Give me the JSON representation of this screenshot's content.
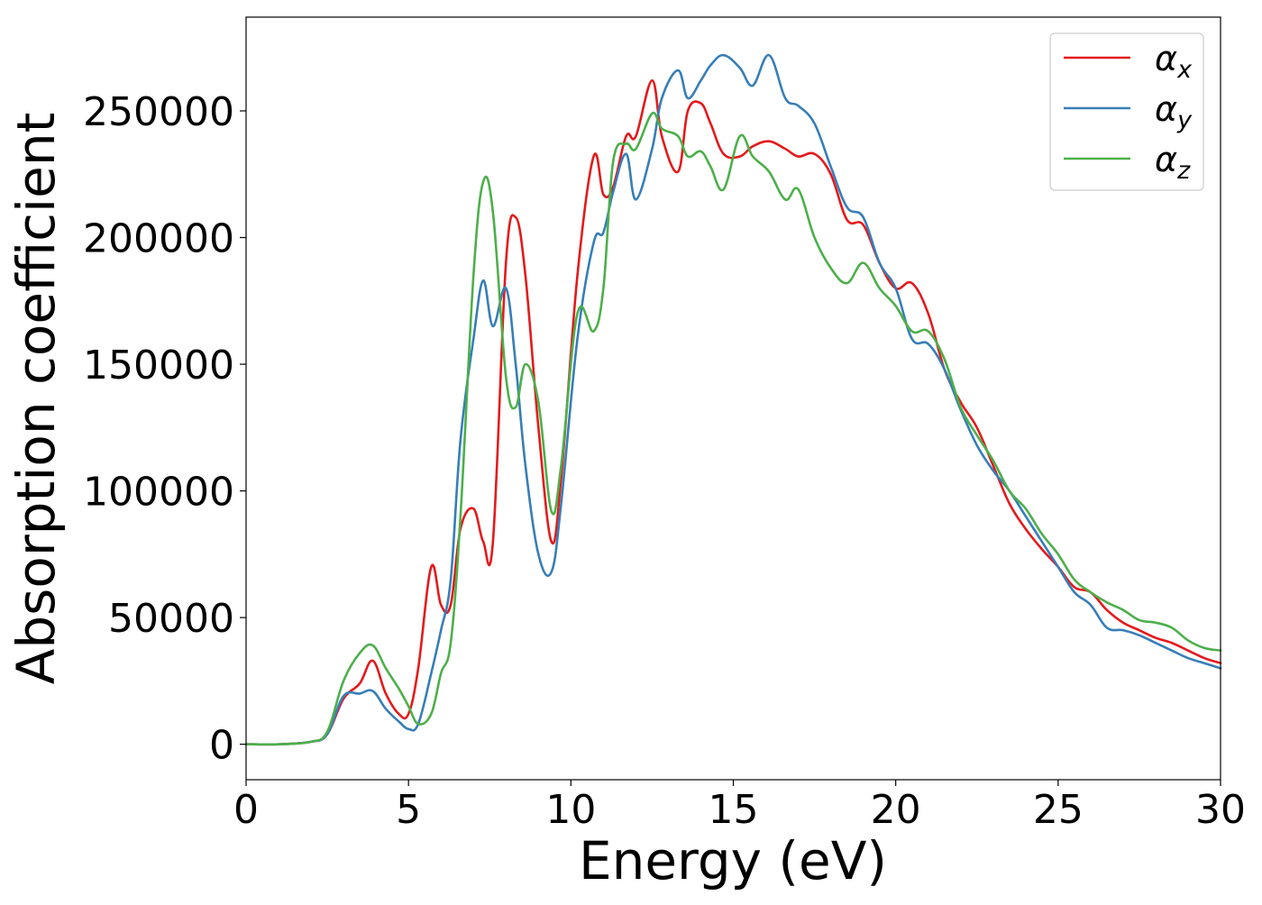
{
  "chart_data": {
    "type": "line",
    "title": "",
    "xlabel": "Energy (eV)",
    "ylabel": "Absorption coefficient",
    "xlim": [
      0,
      30
    ],
    "ylim": [
      -14000,
      287000
    ],
    "x_ticks": [
      0,
      5,
      10,
      15,
      20,
      25,
      30
    ],
    "x_tick_labels": [
      "0",
      "5",
      "10",
      "15",
      "20",
      "25",
      "30"
    ],
    "y_ticks": [
      0,
      50000,
      100000,
      150000,
      200000,
      250000
    ],
    "y_tick_labels": [
      "0",
      "50000",
      "100000",
      "150000",
      "200000",
      "250000"
    ],
    "grid": false,
    "legend": {
      "placement": "top-right",
      "entries": [
        {
          "symbol": "α",
          "subscript": "x",
          "color": "#e41a1c"
        },
        {
          "symbol": "α",
          "subscript": "y",
          "color": "#377eb8"
        },
        {
          "symbol": "α",
          "subscript": "z",
          "color": "#4daf4a"
        }
      ]
    },
    "series": [
      {
        "color": "#e41a1c",
        "x": [
          0,
          1,
          2,
          2.5,
          3,
          3.5,
          3.9,
          4.3,
          4.7,
          5.0,
          5.3,
          5.7,
          6.0,
          6.3,
          6.6,
          7.0,
          7.3,
          7.6,
          8.0,
          8.3,
          8.6,
          9.0,
          9.4,
          9.7,
          10.2,
          10.7,
          11.0,
          11.3,
          11.7,
          12.0,
          12.5,
          12.8,
          13.3,
          13.6,
          14.0,
          14.3,
          14.7,
          15.2,
          15.6,
          16.1,
          16.6,
          17.0,
          17.5,
          18.0,
          18.5,
          19.0,
          19.5,
          20.0,
          20.5,
          21.0,
          21.5,
          22.0,
          22.5,
          23.0,
          23.5,
          24.0,
          24.5,
          25.0,
          25.5,
          26.0,
          26.5,
          27.0,
          27.5,
          28.0,
          28.5,
          29.0,
          29.5,
          30.0
        ],
        "y": [
          0,
          0,
          1000,
          4000,
          18000,
          24000,
          33000,
          20000,
          12000,
          12000,
          30000,
          70000,
          55000,
          55000,
          85000,
          93000,
          80000,
          80000,
          190000,
          208000,
          185000,
          125000,
          80000,
          105000,
          185000,
          232000,
          217000,
          220000,
          240000,
          240000,
          262000,
          240000,
          226000,
          250000,
          253000,
          245000,
          233000,
          232000,
          236000,
          238000,
          235000,
          232000,
          233000,
          225000,
          207000,
          205000,
          190000,
          180000,
          182000,
          170000,
          148000,
          135000,
          125000,
          110000,
          95000,
          85000,
          77000,
          70000,
          62000,
          60000,
          53000,
          48000,
          45000,
          42000,
          40000,
          37000,
          34000,
          32000
        ]
      },
      {
        "color": "#377eb8",
        "x": [
          0,
          1,
          2,
          2.5,
          3,
          3.5,
          3.9,
          4.3,
          4.7,
          5.0,
          5.3,
          5.7,
          6.0,
          6.3,
          6.6,
          7.0,
          7.3,
          7.6,
          8.0,
          8.3,
          8.6,
          9.0,
          9.4,
          9.7,
          10.2,
          10.7,
          11.0,
          11.3,
          11.7,
          12.0,
          12.5,
          12.8,
          13.3,
          13.6,
          14.0,
          14.3,
          14.7,
          15.2,
          15.6,
          16.1,
          16.6,
          17.0,
          17.5,
          18.0,
          18.5,
          19.0,
          19.5,
          20.0,
          20.5,
          21.0,
          21.5,
          22.0,
          22.5,
          23.0,
          23.5,
          24.0,
          24.5,
          25.0,
          25.5,
          26.0,
          26.5,
          27.0,
          27.5,
          28.0,
          28.5,
          29.0,
          29.5,
          30.0
        ],
        "y": [
          0,
          0,
          1000,
          4000,
          19000,
          20000,
          21000,
          14000,
          9000,
          6000,
          8000,
          28000,
          45000,
          65000,
          120000,
          160000,
          183000,
          165000,
          180000,
          150000,
          110000,
          75000,
          68000,
          95000,
          160000,
          198000,
          202000,
          218000,
          233000,
          215000,
          235000,
          255000,
          266000,
          255000,
          262000,
          268000,
          272000,
          267000,
          260000,
          272000,
          255000,
          252000,
          245000,
          228000,
          212000,
          208000,
          190000,
          180000,
          160000,
          158000,
          148000,
          132000,
          118000,
          108000,
          100000,
          90000,
          80000,
          70000,
          60000,
          55000,
          46000,
          45000,
          43000,
          40000,
          37000,
          34000,
          32000,
          30000
        ]
      },
      {
        "color": "#4daf4a",
        "x": [
          0,
          1,
          2,
          2.5,
          3,
          3.5,
          3.9,
          4.3,
          4.7,
          5.0,
          5.3,
          5.7,
          6.0,
          6.3,
          6.6,
          7.0,
          7.3,
          7.6,
          8.0,
          8.3,
          8.6,
          9.0,
          9.4,
          9.7,
          10.2,
          10.7,
          11.0,
          11.3,
          11.7,
          12.0,
          12.5,
          12.8,
          13.3,
          13.6,
          14.0,
          14.3,
          14.7,
          15.2,
          15.6,
          16.1,
          16.6,
          17.0,
          17.5,
          18.0,
          18.5,
          19.0,
          19.5,
          20.0,
          20.5,
          21.0,
          21.5,
          22.0,
          22.5,
          23.0,
          23.5,
          24.0,
          24.5,
          25.0,
          25.5,
          26.0,
          26.5,
          27.0,
          27.5,
          28.0,
          28.5,
          29.0,
          29.5,
          30.0
        ],
        "y": [
          0,
          0,
          1000,
          5000,
          25000,
          36000,
          39000,
          30000,
          22000,
          15000,
          8000,
          12000,
          28000,
          40000,
          90000,
          185000,
          222000,
          210000,
          145000,
          133000,
          150000,
          135000,
          92000,
          110000,
          170000,
          163000,
          180000,
          230000,
          237000,
          235000,
          249000,
          243000,
          240000,
          232000,
          234000,
          228000,
          219000,
          240000,
          232000,
          226000,
          215000,
          219000,
          200000,
          188000,
          182000,
          190000,
          180000,
          173000,
          163000,
          163000,
          152000,
          133000,
          122000,
          112000,
          100000,
          93000,
          83000,
          75000,
          65000,
          60000,
          56000,
          53000,
          49000,
          48000,
          46000,
          41000,
          38000,
          37000
        ]
      }
    ]
  }
}
